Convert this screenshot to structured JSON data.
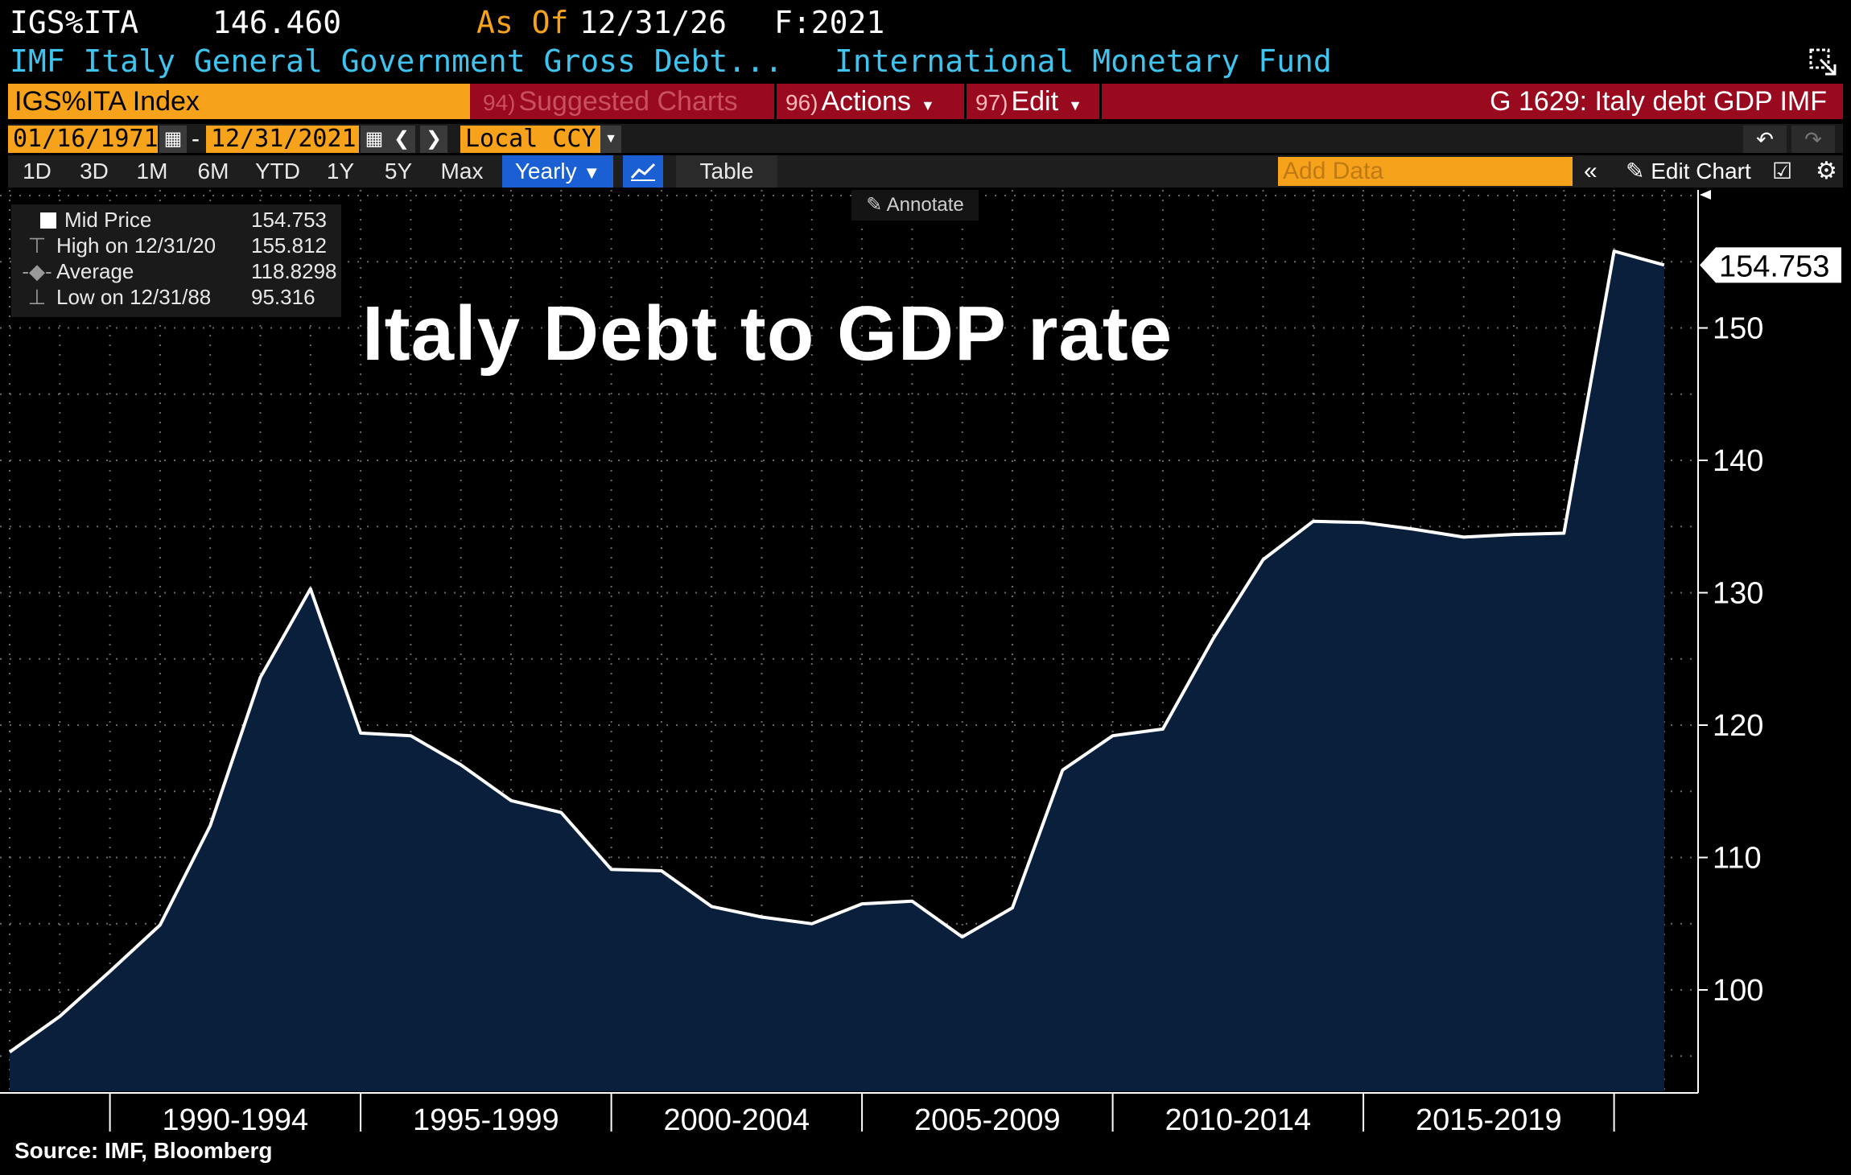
{
  "header": {
    "ticker": "IGS%ITA",
    "price": "146.460",
    "as_of_label": "As Of",
    "as_of_date": "12/31/26",
    "frequency": "F:2021",
    "description": "IMF Italy General Government Gross Debt...",
    "source": "International Monetary Fund"
  },
  "toolbar": {
    "index_name": "IGS%ITA Index",
    "suggested_num": "94)",
    "suggested_label": "Suggested Charts",
    "actions_num": "96)",
    "actions_label": "Actions",
    "edit_num": "97)",
    "edit_label": "Edit",
    "chart_title": "G 1629: Italy debt GDP IMF",
    "start_date": "01/16/1971",
    "dash": "-",
    "end_date": "12/31/2021",
    "currency": "Local CCY",
    "periods": [
      "1D",
      "3D",
      "1M",
      "6M",
      "YTD",
      "1Y",
      "5Y",
      "Max"
    ],
    "frequency_select": "Yearly",
    "table_label": "Table",
    "add_data_placeholder": "Add Data",
    "edit_chart_label": "Edit Chart",
    "annotate_label": "Annotate"
  },
  "legend": {
    "mid_label": "Mid Price",
    "mid_value": "154.753",
    "high_label": "High on 12/31/20",
    "high_value": "155.812",
    "avg_label": "Average",
    "avg_value": "118.8298",
    "low_label": "Low on 12/31/88",
    "low_value": "95.316"
  },
  "overlay_title": "Italy Debt to GDP rate",
  "footer_source": "Source: IMF, Bloomberg",
  "colors": {
    "orange": "#f7a21b",
    "red_bar": "#9a0a1e",
    "area_fill": "#0a1f3c",
    "line": "#ffffff",
    "blue_tab": "#1a5fd4"
  },
  "chart_data": {
    "type": "area",
    "title": "Italy Debt to GDP rate",
    "x": [
      1988,
      1989,
      1990,
      1991,
      1992,
      1993,
      1994,
      1995,
      1996,
      1997,
      1998,
      1999,
      2000,
      2001,
      2002,
      2003,
      2004,
      2005,
      2006,
      2007,
      2008,
      2009,
      2010,
      2011,
      2012,
      2013,
      2014,
      2015,
      2016,
      2017,
      2018,
      2019,
      2020,
      2021
    ],
    "values": [
      95.3,
      98.0,
      101.4,
      104.9,
      112.4,
      123.6,
      130.3,
      119.4,
      119.2,
      117.0,
      114.3,
      113.4,
      109.1,
      109.0,
      106.3,
      105.5,
      105.0,
      106.5,
      106.7,
      104.0,
      106.2,
      116.6,
      119.2,
      119.7,
      126.5,
      132.5,
      135.4,
      135.3,
      134.8,
      134.2,
      134.4,
      134.5,
      155.8,
      154.753
    ],
    "last_value_label": "154.753",
    "x_tick_labels": [
      "1990-1994",
      "1995-1999",
      "2000-2004",
      "2005-2009",
      "2010-2014",
      "2015-2019"
    ],
    "y_ticks": [
      100,
      110,
      120,
      130,
      140,
      150
    ],
    "ylim": [
      91.5,
      161.5
    ],
    "xlabel": "",
    "ylabel": "",
    "grid": true
  }
}
